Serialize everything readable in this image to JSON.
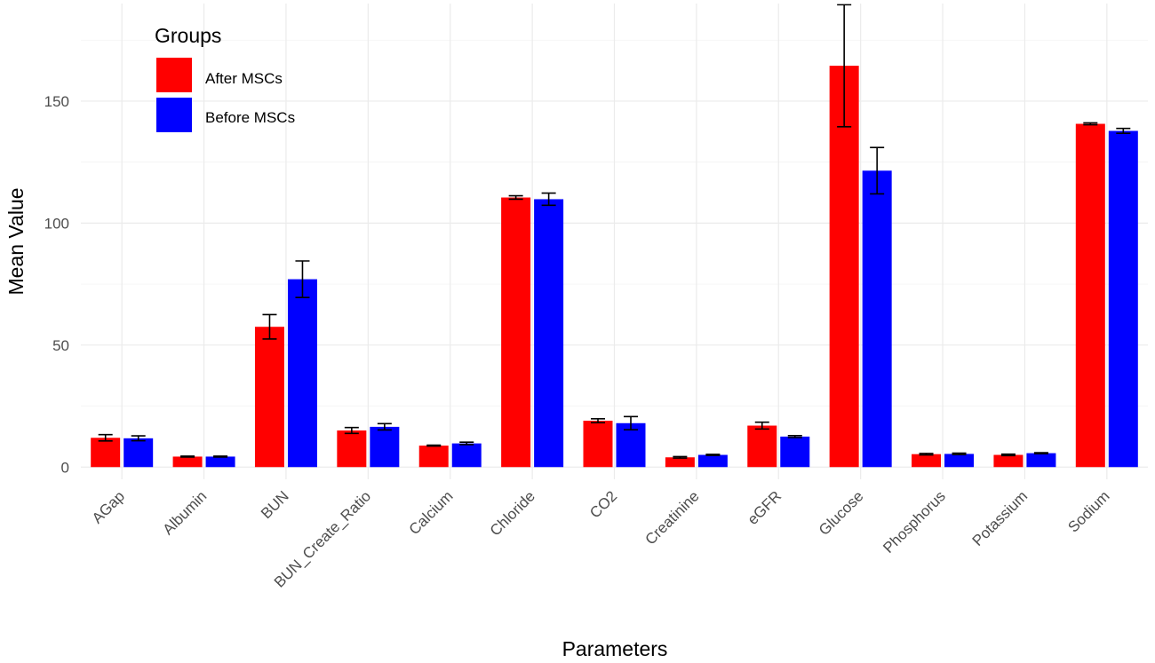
{
  "chart_data": {
    "type": "bar",
    "xlabel": "Parameters",
    "ylabel": "Mean Value",
    "ylim": [
      -5,
      190
    ],
    "yticks": [
      0,
      50,
      100,
      150
    ],
    "grid": true,
    "categories": [
      "AGap",
      "Albumin",
      "BUN",
      "BUN_Create_Ratio",
      "Calcium",
      "Chloride",
      "CO2",
      "Creatinine",
      "eGFR",
      "Glucose",
      "Phosphorus",
      "Potassium",
      "Sodium"
    ],
    "series": [
      {
        "name": "After MSCs",
        "color": "#ff0000",
        "values": [
          12,
          4.3,
          57.5,
          15,
          8.8,
          110.5,
          19,
          4,
          17,
          164.5,
          5.3,
          5,
          140.7
        ],
        "errors": [
          1.3,
          0.2,
          5,
          1.2,
          0.2,
          0.7,
          0.8,
          0.3,
          1.4,
          25,
          0.3,
          0.3,
          0.4
        ]
      },
      {
        "name": "Before MSCs",
        "color": "#0000ff",
        "values": [
          11.8,
          4.3,
          77,
          16.5,
          9.7,
          109.8,
          18,
          5,
          12.5,
          121.5,
          5.4,
          5.7,
          137.8
        ],
        "errors": [
          1,
          0.2,
          7.5,
          1.3,
          0.5,
          2.5,
          2.7,
          0.2,
          0.4,
          9.5,
          0.3,
          0.2,
          1
        ]
      }
    ],
    "legend": {
      "title": "Groups",
      "position": "top-left"
    }
  }
}
